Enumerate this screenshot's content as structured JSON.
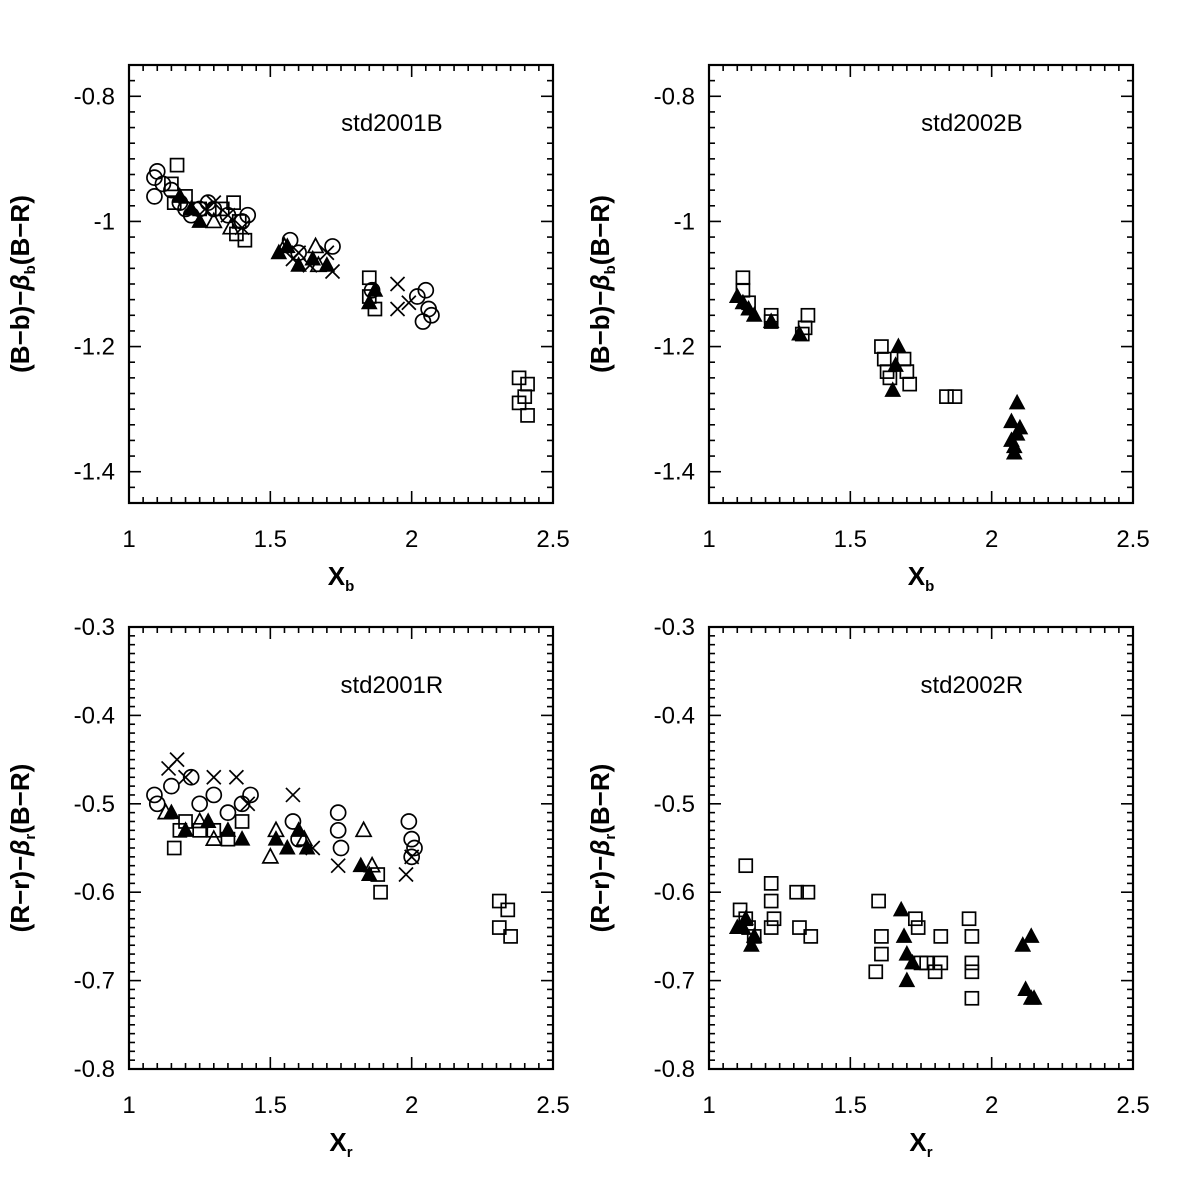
{
  "chart_data": [
    {
      "type": "scatter",
      "panel": "top-left",
      "title": "std2001B",
      "xlabel": "X",
      "xlabel_sub": "b",
      "ylabel": "(B−b)−",
      "ylabel_sub": "b",
      "ylabel_tail": "(B−R)",
      "xlim": [
        1,
        2.5
      ],
      "ylim": [
        -0.75,
        -1.45
      ],
      "xticks": [
        "1",
        "1.5",
        "2",
        "2.5"
      ],
      "yticks": [
        "-0.8",
        "-1",
        "-1.2",
        "-1.4"
      ],
      "series": [
        {
          "marker": "circle",
          "points": [
            [
              1.09,
              -0.93
            ],
            [
              1.09,
              -0.96
            ],
            [
              1.1,
              -0.92
            ],
            [
              1.12,
              -0.94
            ],
            [
              1.15,
              -0.95
            ],
            [
              1.18,
              -0.97
            ],
            [
              1.2,
              -0.98
            ],
            [
              1.22,
              -0.99
            ],
            [
              1.25,
              -0.98
            ],
            [
              1.28,
              -0.97
            ],
            [
              1.3,
              -0.98
            ],
            [
              1.35,
              -0.99
            ],
            [
              1.4,
              -1.0
            ],
            [
              1.42,
              -0.99
            ],
            [
              1.57,
              -1.03
            ],
            [
              1.6,
              -1.05
            ],
            [
              1.72,
              -1.04
            ],
            [
              1.86,
              -1.11
            ],
            [
              2.02,
              -1.12
            ],
            [
              2.05,
              -1.11
            ],
            [
              2.06,
              -1.14
            ],
            [
              2.04,
              -1.16
            ],
            [
              2.07,
              -1.15
            ]
          ]
        },
        {
          "marker": "square",
          "points": [
            [
              1.17,
              -0.91
            ],
            [
              1.15,
              -0.94
            ],
            [
              1.16,
              -0.97
            ],
            [
              1.2,
              -0.96
            ],
            [
              1.25,
              -0.98
            ],
            [
              1.33,
              -0.98
            ],
            [
              1.37,
              -0.97
            ],
            [
              1.39,
              -1.0
            ],
            [
              1.38,
              -1.02
            ],
            [
              1.41,
              -1.03
            ],
            [
              1.85,
              -1.09
            ],
            [
              1.85,
              -1.12
            ],
            [
              1.87,
              -1.14
            ],
            [
              2.38,
              -1.25
            ],
            [
              2.38,
              -1.29
            ],
            [
              2.41,
              -1.31
            ],
            [
              2.41,
              -1.26
            ],
            [
              2.4,
              -1.28
            ]
          ]
        },
        {
          "marker": "triangle",
          "points": [
            [
              1.3,
              -1.0
            ],
            [
              1.36,
              -1.01
            ],
            [
              1.55,
              -1.04
            ],
            [
              1.66,
              -1.04
            ],
            [
              1.67,
              -1.07
            ]
          ]
        },
        {
          "marker": "cross",
          "points": [
            [
              1.27,
              -0.98
            ],
            [
              1.3,
              -0.97
            ],
            [
              1.35,
              -0.99
            ],
            [
              1.4,
              -1.01
            ],
            [
              1.58,
              -1.06
            ],
            [
              1.6,
              -1.05
            ],
            [
              1.64,
              -1.07
            ],
            [
              1.7,
              -1.05
            ],
            [
              1.72,
              -1.08
            ],
            [
              1.95,
              -1.1
            ],
            [
              1.95,
              -1.14
            ],
            [
              1.99,
              -1.13
            ]
          ]
        },
        {
          "marker": "triangle-filled",
          "points": [
            [
              1.18,
              -0.96
            ],
            [
              1.22,
              -0.98
            ],
            [
              1.25,
              -1.0
            ],
            [
              1.53,
              -1.05
            ],
            [
              1.56,
              -1.04
            ],
            [
              1.6,
              -1.07
            ],
            [
              1.65,
              -1.06
            ],
            [
              1.7,
              -1.07
            ],
            [
              1.85,
              -1.13
            ],
            [
              1.87,
              -1.11
            ]
          ]
        }
      ]
    },
    {
      "type": "scatter",
      "panel": "top-right",
      "title": "std2002B",
      "xlabel": "X",
      "xlabel_sub": "b",
      "ylabel": "(B−b)−",
      "ylabel_sub": "b",
      "ylabel_tail": "(B−R)",
      "xlim": [
        1,
        2.5
      ],
      "ylim": [
        -0.75,
        -1.45
      ],
      "xticks": [
        "1",
        "1.5",
        "2",
        "2.5"
      ],
      "yticks": [
        "-0.8",
        "-1",
        "-1.2",
        "-1.4"
      ],
      "series": [
        {
          "marker": "square",
          "points": [
            [
              1.12,
              -1.09
            ],
            [
              1.12,
              -1.11
            ],
            [
              1.14,
              -1.13
            ],
            [
              1.22,
              -1.15
            ],
            [
              1.22,
              -1.16
            ],
            [
              1.34,
              -1.17
            ],
            [
              1.35,
              -1.15
            ],
            [
              1.33,
              -1.18
            ],
            [
              1.61,
              -1.2
            ],
            [
              1.62,
              -1.22
            ],
            [
              1.63,
              -1.24
            ],
            [
              1.64,
              -1.25
            ],
            [
              1.69,
              -1.22
            ],
            [
              1.7,
              -1.24
            ],
            [
              1.71,
              -1.26
            ],
            [
              1.84,
              -1.28
            ],
            [
              1.87,
              -1.28
            ]
          ]
        },
        {
          "marker": "triangle-filled",
          "points": [
            [
              1.1,
              -1.12
            ],
            [
              1.12,
              -1.13
            ],
            [
              1.14,
              -1.14
            ],
            [
              1.16,
              -1.15
            ],
            [
              1.22,
              -1.16
            ],
            [
              1.32,
              -1.18
            ],
            [
              1.65,
              -1.27
            ],
            [
              1.67,
              -1.2
            ],
            [
              1.66,
              -1.23
            ],
            [
              2.07,
              -1.32
            ],
            [
              2.07,
              -1.35
            ],
            [
              2.08,
              -1.36
            ],
            [
              2.09,
              -1.29
            ],
            [
              2.09,
              -1.34
            ],
            [
              2.1,
              -1.33
            ],
            [
              2.08,
              -1.37
            ]
          ]
        }
      ]
    },
    {
      "type": "scatter",
      "panel": "bottom-left",
      "title": "std2001R",
      "xlabel": "X",
      "xlabel_sub": "r",
      "ylabel": "(R−r)−",
      "ylabel_sub": "r",
      "ylabel_tail": "(B−R)",
      "xlim": [
        1,
        2.5
      ],
      "ylim": [
        -0.3,
        -0.8
      ],
      "xticks": [
        "1",
        "1.5",
        "2",
        "2.5"
      ],
      "yticks": [
        "-0.3",
        "-0.4",
        "-0.5",
        "-0.6",
        "-0.7",
        "-0.8"
      ],
      "series": [
        {
          "marker": "circle",
          "points": [
            [
              1.09,
              -0.49
            ],
            [
              1.1,
              -0.5
            ],
            [
              1.15,
              -0.48
            ],
            [
              1.22,
              -0.47
            ],
            [
              1.25,
              -0.5
            ],
            [
              1.3,
              -0.49
            ],
            [
              1.35,
              -0.51
            ],
            [
              1.4,
              -0.5
            ],
            [
              1.43,
              -0.49
            ],
            [
              1.58,
              -0.52
            ],
            [
              1.6,
              -0.54
            ],
            [
              1.74,
              -0.51
            ],
            [
              1.74,
              -0.53
            ],
            [
              1.75,
              -0.55
            ],
            [
              1.99,
              -0.52
            ],
            [
              2.0,
              -0.54
            ],
            [
              2.01,
              -0.55
            ],
            [
              2.0,
              -0.56
            ]
          ]
        },
        {
          "marker": "square",
          "points": [
            [
              1.16,
              -0.55
            ],
            [
              1.18,
              -0.53
            ],
            [
              1.2,
              -0.52
            ],
            [
              1.25,
              -0.53
            ],
            [
              1.3,
              -0.53
            ],
            [
              1.35,
              -0.54
            ],
            [
              1.4,
              -0.52
            ],
            [
              1.88,
              -0.58
            ],
            [
              1.89,
              -0.6
            ],
            [
              2.31,
              -0.61
            ],
            [
              2.31,
              -0.64
            ],
            [
              2.34,
              -0.62
            ],
            [
              2.35,
              -0.65
            ]
          ]
        },
        {
          "marker": "triangle",
          "points": [
            [
              1.13,
              -0.51
            ],
            [
              1.25,
              -0.52
            ],
            [
              1.3,
              -0.54
            ],
            [
              1.5,
              -0.56
            ],
            [
              1.52,
              -0.53
            ],
            [
              1.62,
              -0.54
            ],
            [
              1.83,
              -0.53
            ],
            [
              1.86,
              -0.57
            ]
          ]
        },
        {
          "marker": "cross",
          "points": [
            [
              1.14,
              -0.46
            ],
            [
              1.17,
              -0.45
            ],
            [
              1.2,
              -0.47
            ],
            [
              1.3,
              -0.47
            ],
            [
              1.38,
              -0.47
            ],
            [
              1.42,
              -0.5
            ],
            [
              1.58,
              -0.49
            ],
            [
              1.65,
              -0.55
            ],
            [
              1.74,
              -0.57
            ],
            [
              1.98,
              -0.58
            ],
            [
              2.0,
              -0.56
            ]
          ]
        },
        {
          "marker": "triangle-filled",
          "points": [
            [
              1.15,
              -0.51
            ],
            [
              1.2,
              -0.53
            ],
            [
              1.28,
              -0.52
            ],
            [
              1.35,
              -0.53
            ],
            [
              1.4,
              -0.54
            ],
            [
              1.52,
              -0.54
            ],
            [
              1.56,
              -0.55
            ],
            [
              1.6,
              -0.53
            ],
            [
              1.63,
              -0.55
            ],
            [
              1.82,
              -0.57
            ],
            [
              1.85,
              -0.58
            ]
          ]
        }
      ]
    },
    {
      "type": "scatter",
      "panel": "bottom-right",
      "title": "std2002R",
      "xlabel": "X",
      "xlabel_sub": "r",
      "ylabel": "(R−r)−",
      "ylabel_sub": "r",
      "ylabel_tail": "(B−R)",
      "xlim": [
        1,
        2.5
      ],
      "ylim": [
        -0.3,
        -0.8
      ],
      "xticks": [
        "1",
        "1.5",
        "2",
        "2.5"
      ],
      "yticks": [
        "-0.3",
        "-0.4",
        "-0.5",
        "-0.6",
        "-0.7",
        "-0.8"
      ],
      "series": [
        {
          "marker": "square",
          "points": [
            [
              1.13,
              -0.57
            ],
            [
              1.11,
              -0.62
            ],
            [
              1.13,
              -0.63
            ],
            [
              1.14,
              -0.64
            ],
            [
              1.16,
              -0.65
            ],
            [
              1.22,
              -0.59
            ],
            [
              1.22,
              -0.61
            ],
            [
              1.23,
              -0.63
            ],
            [
              1.22,
              -0.64
            ],
            [
              1.31,
              -0.6
            ],
            [
              1.35,
              -0.6
            ],
            [
              1.32,
              -0.64
            ],
            [
              1.36,
              -0.65
            ],
            [
              1.6,
              -0.61
            ],
            [
              1.61,
              -0.65
            ],
            [
              1.61,
              -0.67
            ],
            [
              1.59,
              -0.69
            ],
            [
              1.73,
              -0.63
            ],
            [
              1.74,
              -0.64
            ],
            [
              1.75,
              -0.68
            ],
            [
              1.77,
              -0.68
            ],
            [
              1.8,
              -0.69
            ],
            [
              1.82,
              -0.65
            ],
            [
              1.82,
              -0.68
            ],
            [
              1.92,
              -0.63
            ],
            [
              1.93,
              -0.65
            ],
            [
              1.93,
              -0.68
            ],
            [
              1.93,
              -0.69
            ],
            [
              1.93,
              -0.72
            ]
          ]
        },
        {
          "marker": "triangle-filled",
          "points": [
            [
              1.1,
              -0.64
            ],
            [
              1.12,
              -0.64
            ],
            [
              1.13,
              -0.63
            ],
            [
              1.15,
              -0.66
            ],
            [
              1.16,
              -0.65
            ],
            [
              1.68,
              -0.62
            ],
            [
              1.69,
              -0.65
            ],
            [
              1.7,
              -0.67
            ],
            [
              1.7,
              -0.7
            ],
            [
              1.72,
              -0.68
            ],
            [
              2.11,
              -0.66
            ],
            [
              2.12,
              -0.71
            ],
            [
              2.14,
              -0.65
            ],
            [
              2.14,
              -0.72
            ],
            [
              2.15,
              -0.72
            ]
          ]
        }
      ]
    }
  ]
}
